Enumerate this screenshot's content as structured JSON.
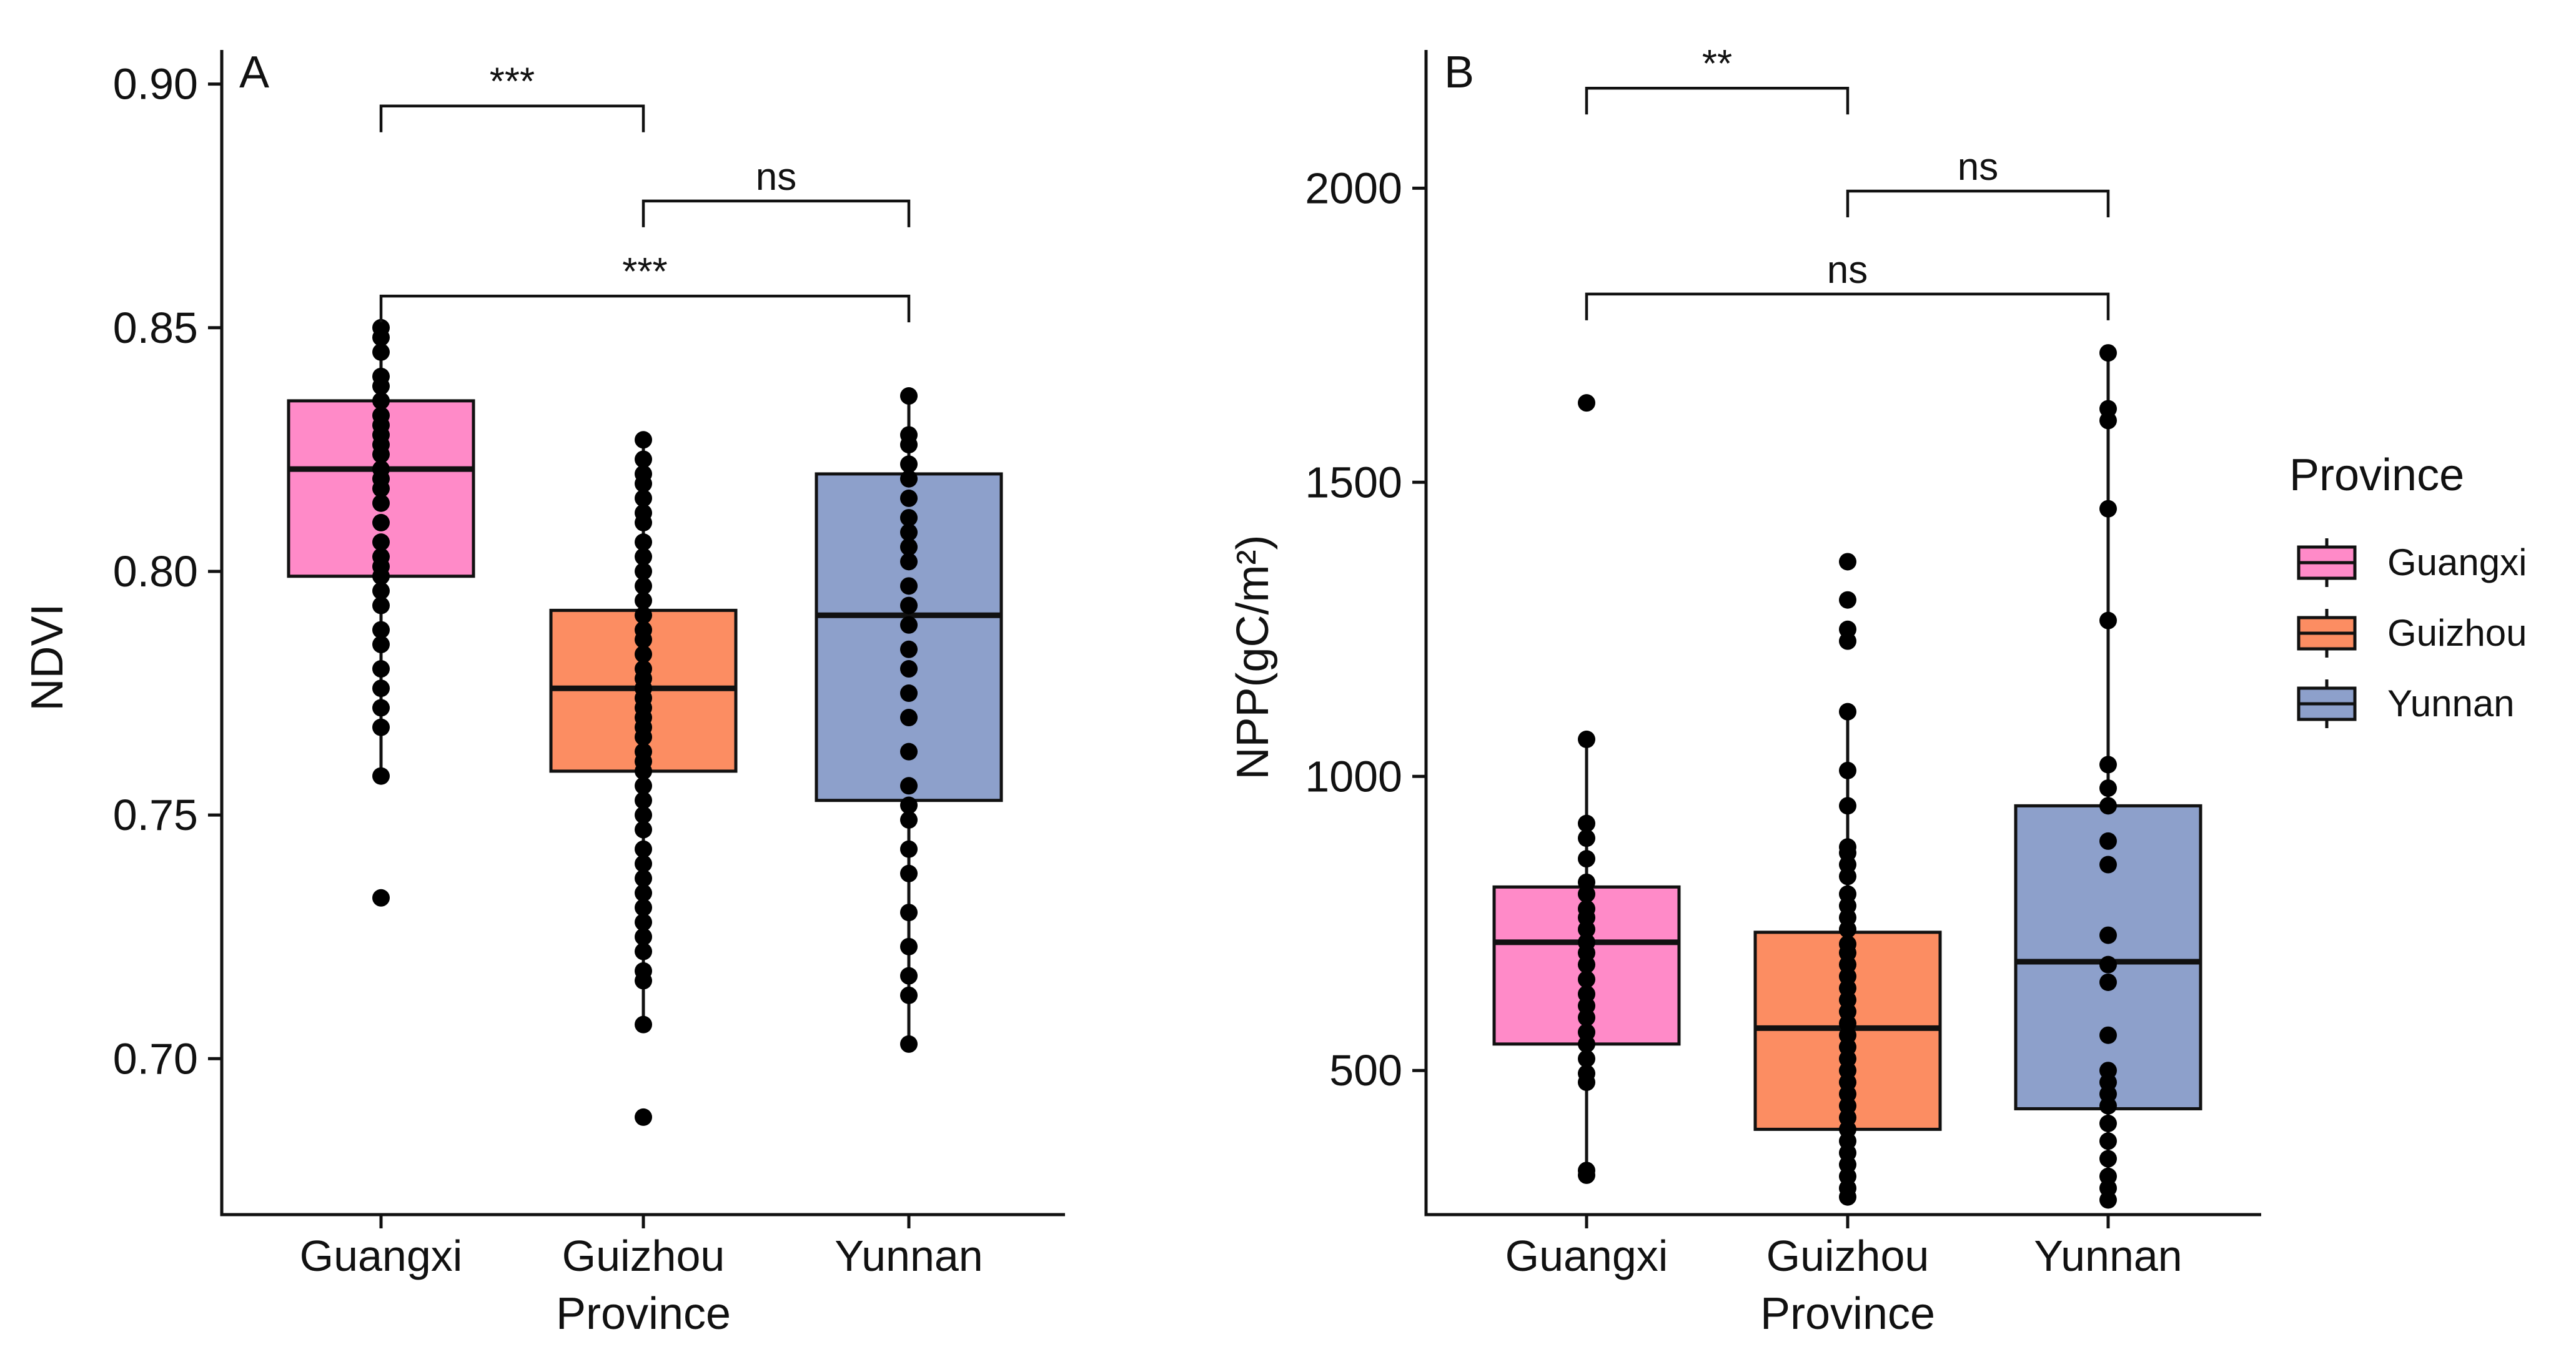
{
  "legend": {
    "title": "Province",
    "items": [
      {
        "label": "Guangxi",
        "color": "#FF8AC8"
      },
      {
        "label": "Guizhou",
        "color": "#FC8D62"
      },
      {
        "label": "Yunnan",
        "color": "#8DA0CB"
      }
    ]
  },
  "chart_data": [
    {
      "type": "box",
      "panel_label": "A",
      "title": "",
      "xlabel": "Province",
      "ylabel": "NDVI",
      "categories": [
        "Guangxi",
        "Guizhou",
        "Yunnan"
      ],
      "ylim": [
        0.668,
        0.907
      ],
      "yticks": [
        0.7,
        0.75,
        0.8,
        0.85,
        0.9
      ],
      "ytick_labels": [
        "0.70",
        "0.75",
        "0.80",
        "0.85",
        "0.90"
      ],
      "boxes": [
        {
          "category": "Guangxi",
          "color": "#FF8AC8",
          "q1": 0.799,
          "median": 0.821,
          "q3": 0.835,
          "whisker_low": 0.758,
          "whisker_high": 0.85,
          "points": [
            0.85,
            0.848,
            0.845,
            0.84,
            0.838,
            0.835,
            0.832,
            0.83,
            0.828,
            0.826,
            0.824,
            0.821,
            0.819,
            0.817,
            0.814,
            0.81,
            0.806,
            0.803,
            0.801,
            0.799,
            0.796,
            0.793,
            0.788,
            0.785,
            0.78,
            0.776,
            0.772,
            0.768,
            0.758,
            0.733
          ]
        },
        {
          "category": "Guizhou",
          "color": "#FC8D62",
          "q1": 0.759,
          "median": 0.776,
          "q3": 0.792,
          "whisker_low": 0.707,
          "whisker_high": 0.827,
          "points": [
            0.827,
            0.823,
            0.82,
            0.818,
            0.815,
            0.812,
            0.81,
            0.806,
            0.803,
            0.8,
            0.797,
            0.794,
            0.791,
            0.788,
            0.786,
            0.783,
            0.78,
            0.778,
            0.776,
            0.774,
            0.772,
            0.77,
            0.768,
            0.766,
            0.763,
            0.761,
            0.759,
            0.756,
            0.753,
            0.75,
            0.747,
            0.743,
            0.74,
            0.737,
            0.734,
            0.731,
            0.728,
            0.725,
            0.722,
            0.718,
            0.716,
            0.707,
            0.688
          ]
        },
        {
          "category": "Yunnan",
          "color": "#8DA0CB",
          "q1": 0.753,
          "median": 0.791,
          "q3": 0.82,
          "whisker_low": 0.703,
          "whisker_high": 0.836,
          "points": [
            0.836,
            0.828,
            0.826,
            0.822,
            0.819,
            0.815,
            0.811,
            0.808,
            0.805,
            0.802,
            0.797,
            0.793,
            0.789,
            0.784,
            0.78,
            0.775,
            0.77,
            0.763,
            0.756,
            0.752,
            0.749,
            0.743,
            0.738,
            0.73,
            0.723,
            0.717,
            0.713,
            0.703
          ]
        }
      ],
      "significance": [
        {
          "from": "Guangxi",
          "to": "Guizhou",
          "label": "***",
          "y": 0.8955
        },
        {
          "from": "Guizhou",
          "to": "Yunnan",
          "label": "ns",
          "y": 0.876
        },
        {
          "from": "Guangxi",
          "to": "Yunnan",
          "label": "***",
          "y": 0.8565
        }
      ]
    },
    {
      "type": "box",
      "panel_label": "B",
      "title": "",
      "xlabel": "Province",
      "ylabel": "NPP(gC/m²)",
      "categories": [
        "Guangxi",
        "Guizhou",
        "Yunnan"
      ],
      "ylim": [
        255,
        2235
      ],
      "yticks": [
        500,
        1000,
        1500,
        2000
      ],
      "ytick_labels": [
        "500",
        "1000",
        "1500",
        "2000"
      ],
      "boxes": [
        {
          "category": "Guangxi",
          "color": "#FF8AC8",
          "q1": 545,
          "median": 718,
          "q3": 812,
          "whisker_low": 325,
          "whisker_high": 1063,
          "points": [
            1635,
            1063,
            920,
            895,
            860,
            820,
            800,
            775,
            760,
            740,
            718,
            700,
            680,
            655,
            630,
            610,
            590,
            565,
            545,
            520,
            495,
            480,
            330,
            322
          ]
        },
        {
          "category": "Guizhou",
          "color": "#FC8D62",
          "q1": 400,
          "median": 572,
          "q3": 735,
          "whisker_low": 285,
          "whisker_high": 1110,
          "points": [
            1365,
            1300,
            1250,
            1230,
            1110,
            1010,
            950,
            880,
            870,
            850,
            830,
            800,
            780,
            760,
            740,
            715,
            700,
            680,
            660,
            640,
            620,
            600,
            580,
            560,
            540,
            520,
            500,
            480,
            460,
            440,
            420,
            400,
            380,
            360,
            340,
            320,
            300,
            285
          ]
        },
        {
          "category": "Yunnan",
          "color": "#8DA0CB",
          "q1": 435,
          "median": 685,
          "q3": 950,
          "whisker_low": 280,
          "whisker_high": 1720,
          "points": [
            1720,
            1625,
            1605,
            1455,
            1265,
            1020,
            980,
            950,
            890,
            850,
            730,
            680,
            650,
            560,
            500,
            480,
            460,
            440,
            410,
            380,
            350,
            320,
            300,
            280
          ]
        }
      ],
      "significance": [
        {
          "from": "Guangxi",
          "to": "Guizhou",
          "label": "**",
          "y": 2170
        },
        {
          "from": "Guizhou",
          "to": "Yunnan",
          "label": "ns",
          "y": 1995
        },
        {
          "from": "Guangxi",
          "to": "Yunnan",
          "label": "ns",
          "y": 1820
        }
      ]
    }
  ]
}
